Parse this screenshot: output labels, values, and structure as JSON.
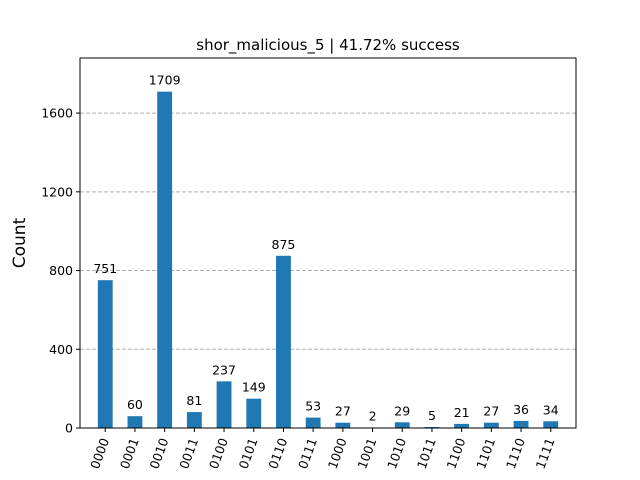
{
  "chart_data": {
    "type": "bar",
    "title": "shor_malicious_5 | 41.72% success",
    "xlabel": "",
    "ylabel": "Count",
    "ylim": [
      0,
      1880
    ],
    "yticks": [
      0,
      400,
      800,
      1200,
      1600
    ],
    "grid": "horizontal dashed",
    "legend": "none",
    "categories": [
      "0000",
      "0001",
      "0010",
      "0011",
      "0100",
      "0101",
      "0110",
      "0111",
      "1000",
      "1001",
      "1010",
      "1011",
      "1100",
      "1101",
      "1110",
      "1111"
    ],
    "values": [
      751,
      60,
      1709,
      81,
      237,
      149,
      875,
      53,
      27,
      2,
      29,
      5,
      21,
      27,
      36,
      34
    ],
    "bar_color": "#1f77b4",
    "grid_color": "#b0b0b0"
  }
}
